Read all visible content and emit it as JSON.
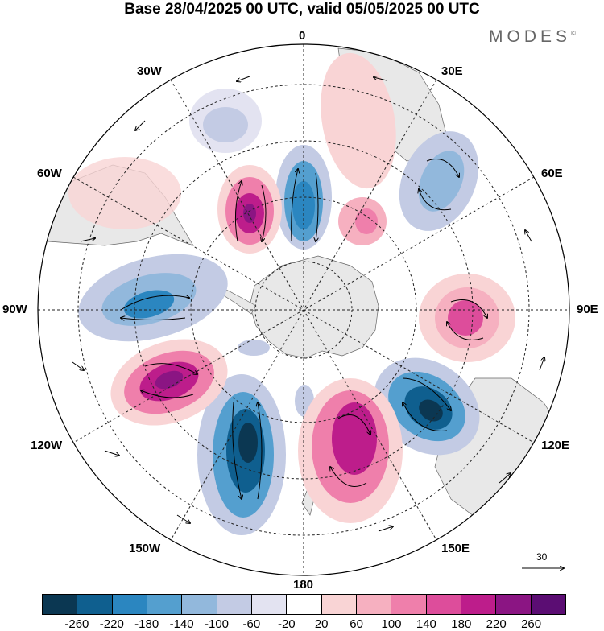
{
  "title": "Base 28/04/2025 00 UTC, valid 05/05/2025 00 UTC",
  "brand": "MODES",
  "brand_mark": "©",
  "meridian_labels": {
    "m0": "0",
    "m30e": "30E",
    "m60e": "60E",
    "m90e": "90E",
    "m120e": "120E",
    "m150e": "150E",
    "m180": "180",
    "m150w": "150W",
    "m120w": "120W",
    "m90w": "90W",
    "m60w": "60W",
    "m30w": "30W"
  },
  "reference_vector": {
    "label": "30"
  },
  "colorbar": {
    "ticks": [
      "-260",
      "-220",
      "-180",
      "-140",
      "-100",
      "-60",
      "-20",
      "20",
      "60",
      "100",
      "140",
      "180",
      "220",
      "260"
    ],
    "colors": [
      "#0b3752",
      "#0f5f8f",
      "#2b86c0",
      "#549fcf",
      "#92b8dc",
      "#c3cbe4",
      "#e3e3f1",
      "#ffffff",
      "#f9d4d5",
      "#f6b0c0",
      "#ef7fab",
      "#dd4d9b",
      "#bd1d8b",
      "#8b1583",
      "#5b0d73"
    ]
  },
  "colors": {
    "land": "#e8e8e8",
    "grid": "#222222"
  }
}
